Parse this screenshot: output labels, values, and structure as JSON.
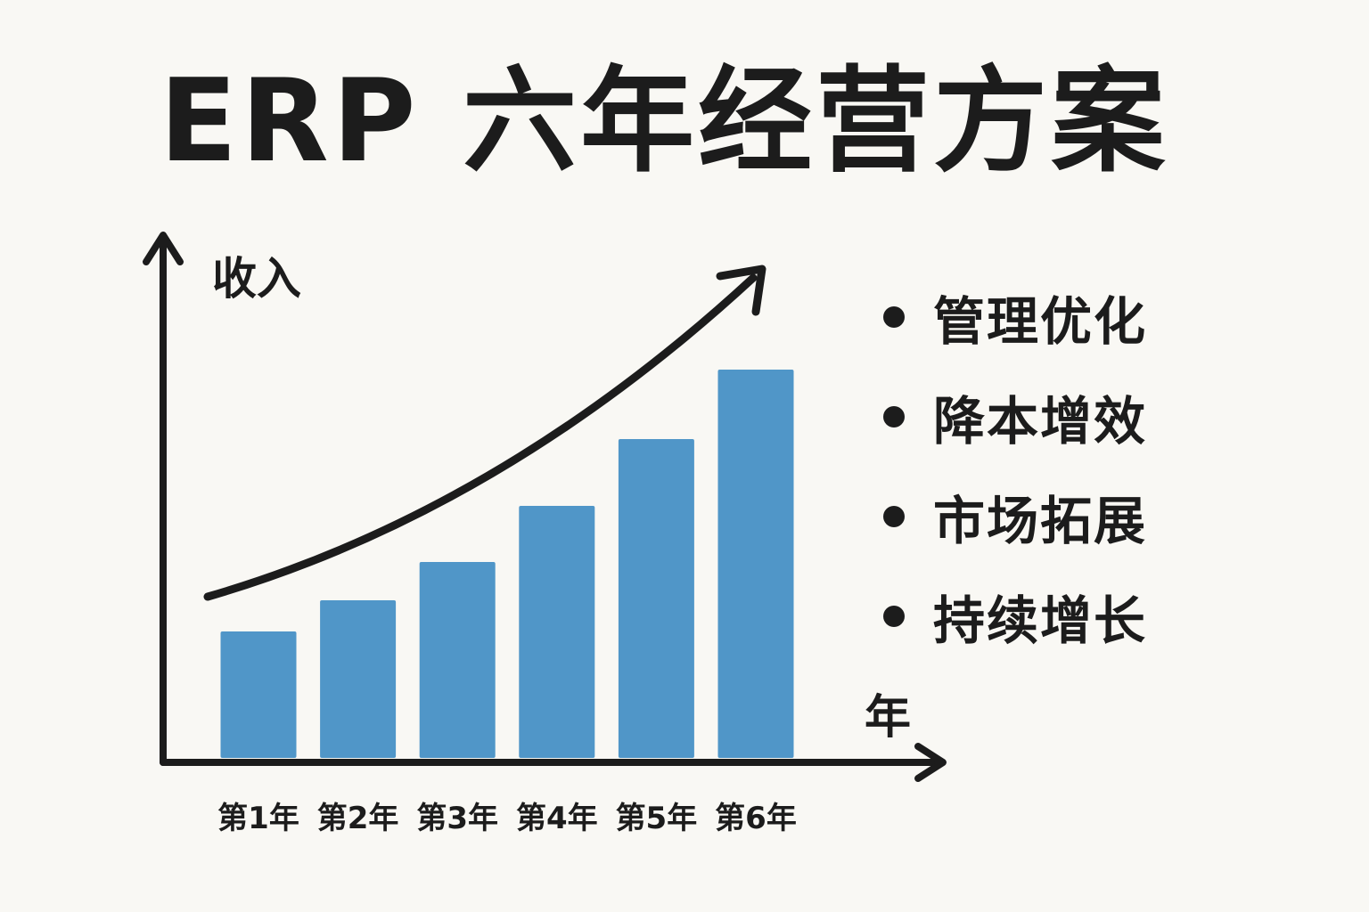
{
  "title": "ERP 六年经营方案",
  "colors": {
    "background": "#f9f8f4",
    "bar": "#5096c8",
    "ink": "#1c1c1c"
  },
  "chart_data": {
    "type": "bar",
    "title": "ERP 六年经营方案",
    "ylabel": "收入",
    "xlabel": "年",
    "categories": [
      "第1年",
      "第2年",
      "第3年",
      "第4年",
      "第5年",
      "第6年"
    ],
    "values": [
      142,
      177,
      220,
      283,
      358,
      436
    ],
    "ylim": [
      0,
      580
    ],
    "grid": false,
    "trend_arrow": true,
    "axis_arrows": true
  },
  "bullets": [
    {
      "text": "管理优化"
    },
    {
      "text": "降本增效"
    },
    {
      "text": "市场拓展"
    },
    {
      "text": "持续增长"
    }
  ]
}
